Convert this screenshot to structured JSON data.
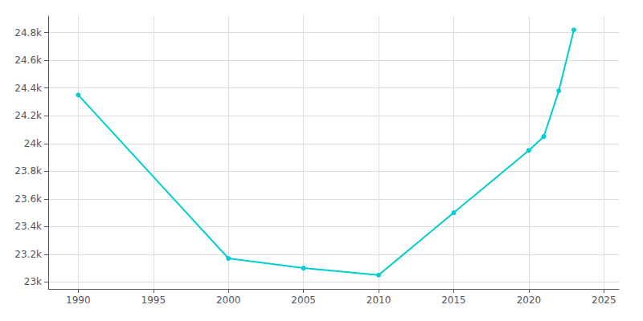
{
  "chart_data": {
    "type": "line",
    "x": [
      1990,
      2000,
      2005,
      2010,
      2015,
      2020,
      2021,
      2022,
      2023
    ],
    "values": [
      24350,
      23170,
      23100,
      23050,
      23500,
      23950,
      24050,
      24380,
      24820
    ],
    "color": "#00CED1",
    "marker": "circle",
    "xlim": [
      1988,
      2026
    ],
    "ylim": [
      22950,
      24920
    ],
    "xticks": [
      1990,
      1995,
      2000,
      2005,
      2010,
      2015,
      2020,
      2025
    ],
    "yticks": [
      {
        "value": 23000,
        "label": "23k"
      },
      {
        "value": 23200,
        "label": "23.2k"
      },
      {
        "value": 23400,
        "label": "23.4k"
      },
      {
        "value": 23600,
        "label": "23.6k"
      },
      {
        "value": 23800,
        "label": "23.8k"
      },
      {
        "value": 24000,
        "label": "24k"
      },
      {
        "value": 24200,
        "label": "24.2k"
      },
      {
        "value": 24400,
        "label": "24.4k"
      },
      {
        "value": 24600,
        "label": "24.6k"
      },
      {
        "value": 24800,
        "label": "24.8k"
      }
    ],
    "grid": true
  }
}
